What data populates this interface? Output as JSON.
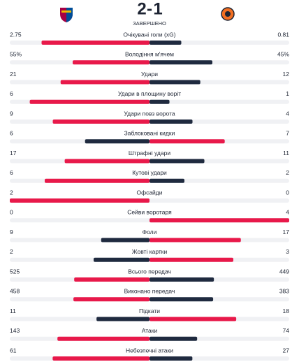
{
  "header": {
    "home_score": 2,
    "away_score": 1,
    "status": "ЗАВЕРШЕНО"
  },
  "stats": [
    {
      "label": "Очікувані голи (xG)",
      "home": 2.75,
      "away": 0.81
    },
    {
      "label": "Володіння м'ячем",
      "home": 55,
      "away": 45,
      "home_label": "55%",
      "away_label": "45%"
    },
    {
      "label": "Удари",
      "home": 21,
      "away": 12
    },
    {
      "label": "Удари в площину воріт",
      "home": 6,
      "away": 1
    },
    {
      "label": "Удари повз ворота",
      "home": 9,
      "away": 4
    },
    {
      "label": "Заблоковані кидки",
      "home": 6,
      "away": 7
    },
    {
      "label": "Штрафні удари",
      "home": 17,
      "away": 11
    },
    {
      "label": "Кутові удари",
      "home": 6,
      "away": 2
    },
    {
      "label": "Офсайди",
      "home": 2,
      "away": 0
    },
    {
      "label": "Сейви воротаря",
      "home": 0,
      "away": 4
    },
    {
      "label": "Фоли",
      "home": 9,
      "away": 17
    },
    {
      "label": "Жовті картки",
      "home": 2,
      "away": 3
    },
    {
      "label": "Всього передач",
      "home": 525,
      "away": 449
    },
    {
      "label": "Виконано передач",
      "home": 458,
      "away": 383
    },
    {
      "label": "Підкати",
      "home": 11,
      "away": 18
    },
    {
      "label": "Атаки",
      "home": 143,
      "away": 74
    },
    {
      "label": "Небезпечні атаки",
      "home": 61,
      "away": 27
    }
  ]
}
